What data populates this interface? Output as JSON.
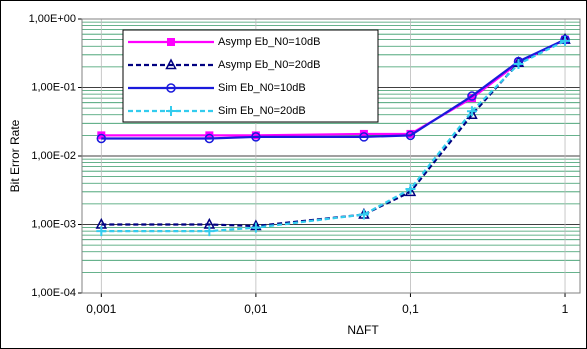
{
  "chart_data": {
    "type": "line",
    "xlabel": "NΔFT",
    "ylabel": "Bit Error Rate",
    "x": [
      0.001,
      0.005,
      0.01,
      0.05,
      0.1,
      0.25,
      0.5,
      1
    ],
    "series": [
      {
        "name": "Asymp Eb_N0=10dB",
        "color": "#ff00ff",
        "marker": "square",
        "dash": false,
        "values": [
          0.02,
          0.02,
          0.02,
          0.021,
          0.021,
          0.07,
          0.23,
          0.5
        ]
      },
      {
        "name": "Asymp Eb_N0=20dB",
        "color": "#000080",
        "marker": "triangle",
        "dash": true,
        "values": [
          0.001,
          0.001,
          0.00095,
          0.0014,
          0.003,
          0.04,
          0.23,
          0.5
        ]
      },
      {
        "name": "Sim Eb_N0=10dB",
        "color": "#1a1adc",
        "marker": "circle",
        "dash": false,
        "values": [
          0.018,
          0.018,
          0.019,
          0.019,
          0.02,
          0.075,
          0.24,
          0.5
        ]
      },
      {
        "name": "Sim Eb_N0=20dB",
        "color": "#33ccee",
        "marker": "plus",
        "dash": true,
        "values": [
          0.0008,
          0.0008,
          0.0009,
          0.0014,
          0.0033,
          0.045,
          0.22,
          0.48
        ]
      }
    ],
    "xscale": "log",
    "yscale": "log",
    "xlim": [
      0.00075,
      1.25
    ],
    "ylim": [
      0.0001,
      1
    ],
    "xticks": [
      {
        "value": 0.001,
        "label": "0,001"
      },
      {
        "value": 0.01,
        "label": "0,01"
      },
      {
        "value": 0.1,
        "label": "0,1"
      },
      1
    ],
    "yticks": [
      {
        "value": 0.0001,
        "label": "1,00E-04"
      },
      {
        "value": 0.001,
        "label": "1,00E-03"
      },
      {
        "value": 0.01,
        "label": "1,00E-02"
      },
      {
        "value": 0.1,
        "label": "1,00E-01"
      },
      {
        "value": 1,
        "label": "1,00E+00"
      }
    ],
    "grid": true,
    "minor_grid_color": "#339966"
  }
}
